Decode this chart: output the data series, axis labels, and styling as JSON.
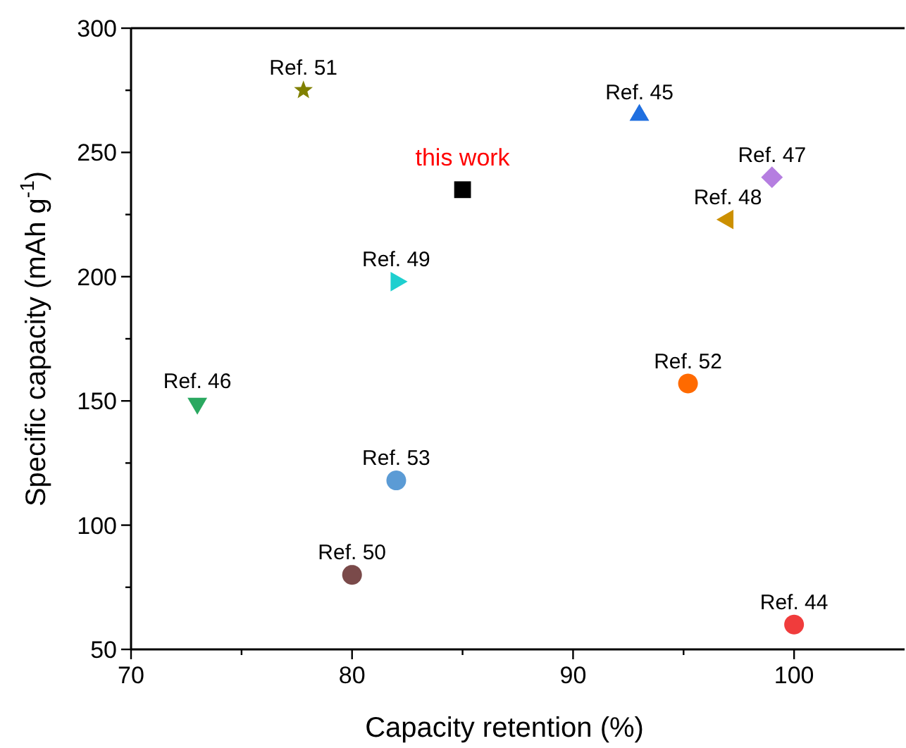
{
  "chart_data": {
    "type": "scatter",
    "xlabel": "Capacity retention (%)",
    "ylabel": "Specific capacity (mAh g$^{-1}$)",
    "xlim": [
      70,
      105
    ],
    "xticks": [
      70,
      {
        "value": 75,
        "label": null
      },
      80,
      {
        "value": 85,
        "label": null
      },
      90,
      {
        "value": 95,
        "label": null
      },
      100
    ],
    "ylim": [
      50,
      300
    ],
    "yticks": [
      50,
      {
        "value": 75,
        "label": null
      },
      100,
      {
        "value": 125,
        "label": null
      },
      150,
      {
        "value": 175,
        "label": null
      },
      200,
      {
        "value": 225,
        "label": null
      },
      250,
      {
        "value": 275,
        "label": null
      },
      300
    ],
    "grid": false,
    "annotations": [
      {
        "text": "this work",
        "x": 85,
        "y": 235
      }
    ],
    "series": [
      {
        "name": "Ref. 51",
        "color": "#808000",
        "marker": "star",
        "x": [
          77.8
        ],
        "values": [
          275
        ]
      },
      {
        "name": "Ref. 45",
        "color": "#1f6fe0",
        "marker": "triangle",
        "x": [
          93
        ],
        "values": [
          265
        ]
      },
      {
        "color": "#000000",
        "marker": "square",
        "x": [
          85
        ],
        "values": [
          235
        ]
      },
      {
        "name": "Ref. 47",
        "color": "#b57ee0",
        "marker": "diamond",
        "x": [
          99
        ],
        "values": [
          240
        ]
      },
      {
        "name": "Ref. 48",
        "color": "#cc9000",
        "marker": "triangle-left",
        "x": [
          97
        ],
        "values": [
          223
        ]
      },
      {
        "name": "Ref. 49",
        "color": "#1ecfcf",
        "marker": "triangle-right",
        "x": [
          82
        ],
        "values": [
          198
        ]
      },
      {
        "name": "Ref. 52",
        "color": "#ff6a00",
        "x": [
          95.2
        ],
        "values": [
          157
        ]
      },
      {
        "name": "Ref. 46",
        "color": "#2aa860",
        "marker": "triangle-down",
        "x": [
          73
        ],
        "values": [
          149
        ]
      },
      {
        "name": "Ref. 53",
        "color": "#5b9bd5",
        "marker": "circle",
        "x": [
          82
        ],
        "values": [
          118
        ]
      },
      {
        "name": "Ref. 50",
        "color": "#7a4a4a",
        "x": [
          80
        ],
        "values": [
          80
        ]
      },
      {
        "name": "Ref. 44",
        "color": "#f03c3c",
        "marker": "circle",
        "x": [
          100
        ],
        "values": [
          60
        ]
      }
    ]
  }
}
